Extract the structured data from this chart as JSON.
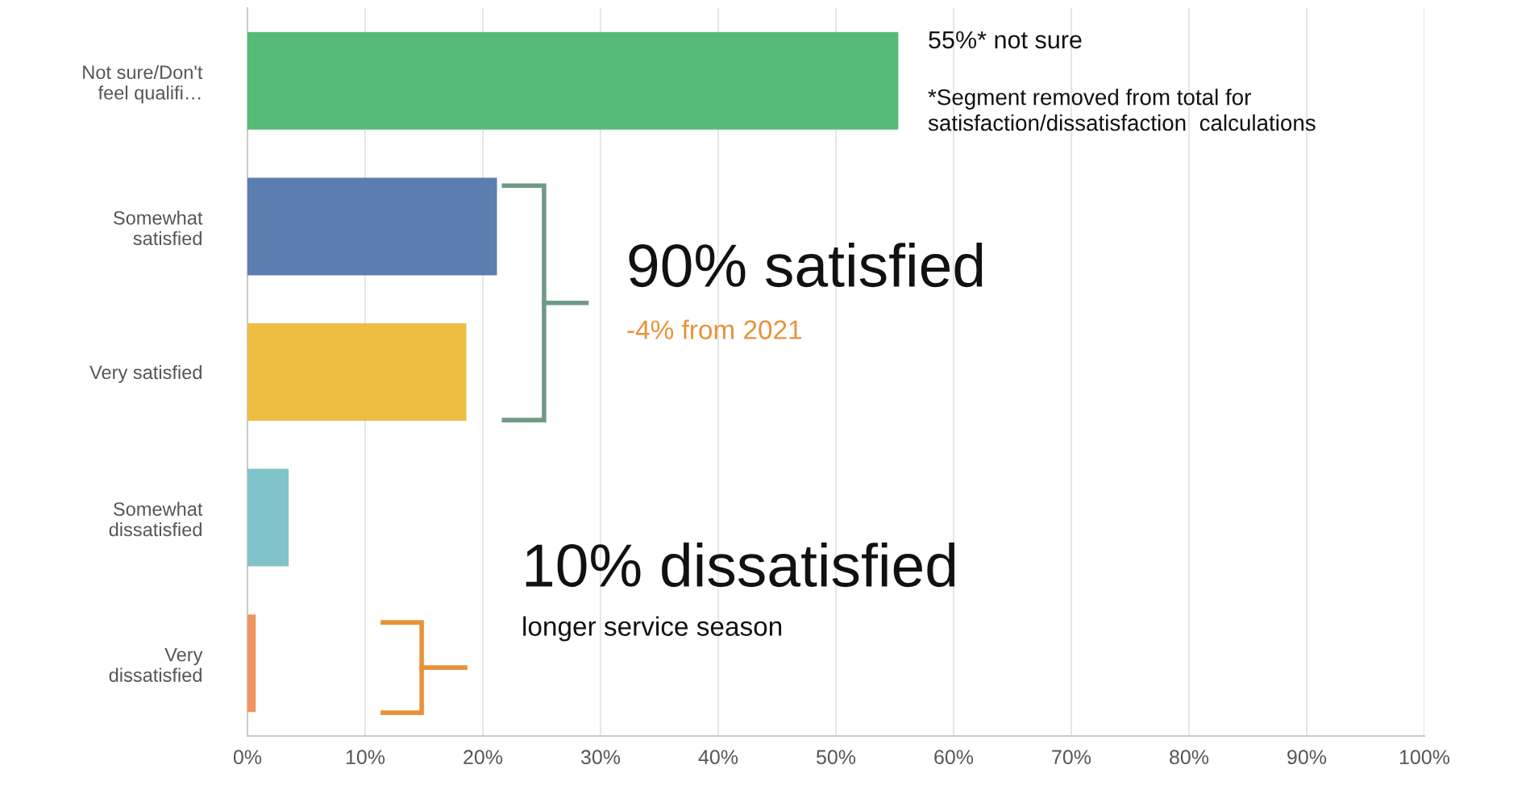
{
  "chart_data": {
    "type": "bar",
    "orientation": "horizontal",
    "categories": [
      "Not sure/Don't\nfeel qualifi…",
      "Somewhat\nsatisfied",
      "Very satisfied",
      "Somewhat\ndissatisfied",
      "Very\ndissatisfied"
    ],
    "values": [
      55.3,
      21.2,
      18.6,
      3.5,
      0.7
    ],
    "colors": [
      "#57bb78",
      "#5b7db0",
      "#eebe43",
      "#80c3c8",
      "#ef9460"
    ],
    "xlim": [
      0,
      100
    ],
    "xticks": [
      {
        "value": 0,
        "label": "0%"
      },
      {
        "value": 10,
        "label": "10%"
      },
      {
        "value": 20,
        "label": "20%"
      },
      {
        "value": 30,
        "label": "30%"
      },
      {
        "value": 40,
        "label": "40%"
      },
      {
        "value": 50,
        "label": "50%"
      },
      {
        "value": 60,
        "label": "60%"
      },
      {
        "value": 70,
        "label": "70%"
      },
      {
        "value": 80,
        "label": "80%"
      },
      {
        "value": 90,
        "label": "90%"
      },
      {
        "value": 100,
        "label": "100%"
      }
    ],
    "grid": "x",
    "legend": false,
    "annotations": [
      "55%* not sure",
      "*Segment removed from total for\nsatisfaction/dissatisfaction  calculations",
      "90% satisfied",
      "-4% from 2021",
      "10% dissatisfied",
      "longer service season"
    ]
  }
}
